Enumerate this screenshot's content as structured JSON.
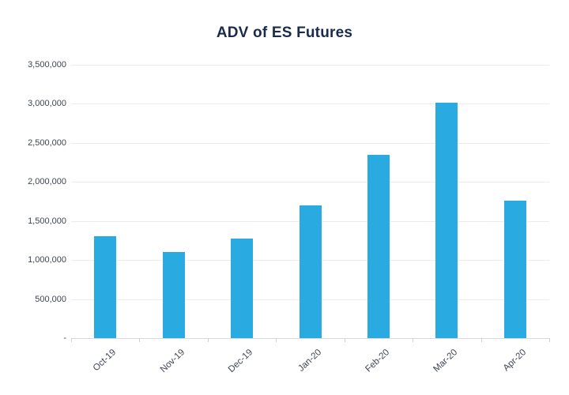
{
  "page": {
    "background_color": "#ffffff"
  },
  "chart_data": {
    "type": "bar",
    "title": "ADV of ES Futures",
    "categories": [
      "Oct-19",
      "Nov-19",
      "Dec-19",
      "Jan-20",
      "Feb-20",
      "Mar-20",
      "Apr-20"
    ],
    "values": [
      1300000,
      1100000,
      1270000,
      1700000,
      2350000,
      3010000,
      1760000
    ],
    "xlabel": "",
    "ylabel": "",
    "ylim": [
      0,
      3500000
    ],
    "y_ticks": [
      0,
      500000,
      1000000,
      1500000,
      2000000,
      2500000,
      3000000,
      3500000
    ],
    "y_tick_labels": [
      "-",
      "500,000",
      "1,000,000",
      "1,500,000",
      "2,000,000",
      "2,500,000",
      "3,000,000",
      "3,500,000"
    ],
    "grid": "horizontal",
    "legend": "none",
    "colors": {
      "bar": "#29ABE2",
      "title": "#1B2B4C",
      "axis_labels": "#3E4653",
      "gridline": "#ECECEC",
      "axis_line": "#D9D9D9",
      "tick": "#CFCFCF"
    }
  }
}
